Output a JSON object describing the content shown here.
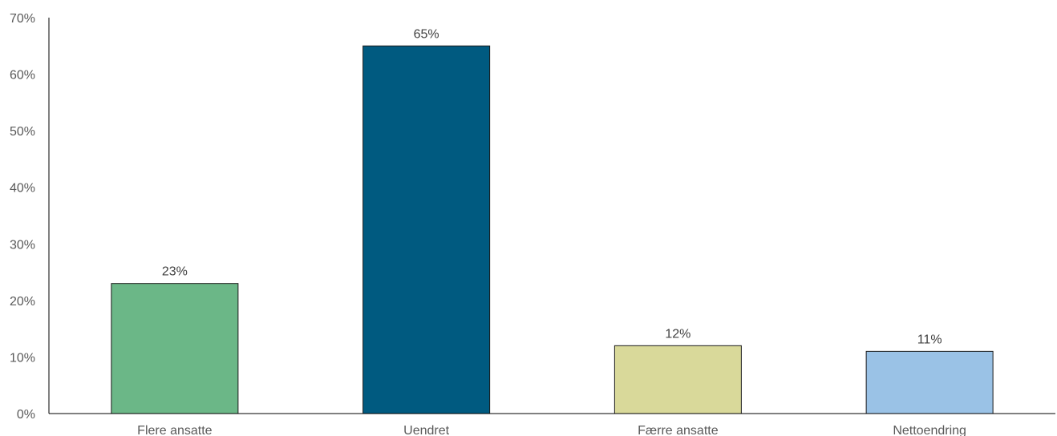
{
  "chart_data": {
    "type": "bar",
    "title": "",
    "xlabel": "",
    "ylabel": "",
    "categories": [
      "Flere ansatte",
      "Uendret",
      "Færre ansatte",
      "Nettoendring"
    ],
    "values": [
      23,
      65,
      12,
      11
    ],
    "value_labels": [
      "23%",
      "65%",
      "12%",
      "11%"
    ],
    "bar_colors": [
      "#6BB787",
      "#005A80",
      "#D9D99A",
      "#9AC2E6"
    ],
    "ylim": [
      0,
      70
    ],
    "yticks": [
      0,
      10,
      20,
      30,
      40,
      50,
      60,
      70
    ],
    "ytick_labels": [
      "0%",
      "10%",
      "20%",
      "30%",
      "40%",
      "50%",
      "60%",
      "70%"
    ],
    "grid": false,
    "legend": "none"
  }
}
